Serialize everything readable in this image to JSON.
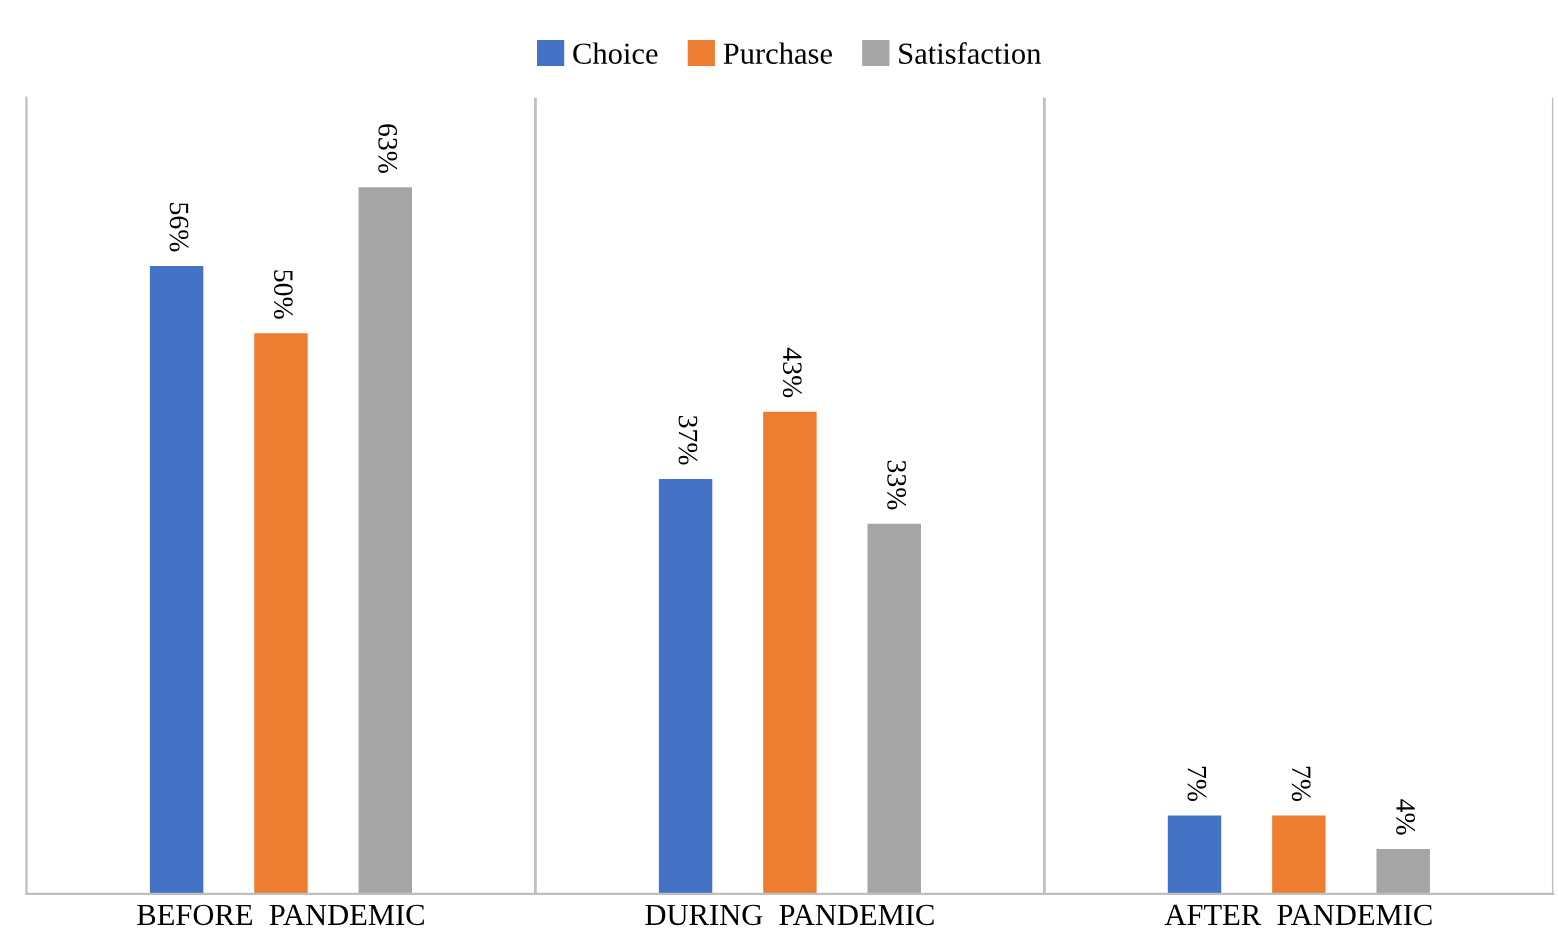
{
  "chart_data": {
    "type": "bar",
    "categories": [
      "BEFORE  PANDEMIC",
      "DURING  PANDEMIC",
      "AFTER  PANDEMIC"
    ],
    "series": [
      {
        "name": "Choice",
        "color": "#4472c4",
        "values": [
          56,
          37,
          7
        ],
        "value_labels": [
          "56%",
          "37%",
          "7%"
        ]
      },
      {
        "name": "Purchase",
        "color": "#ed7d31",
        "values": [
          50,
          43,
          7
        ],
        "value_labels": [
          "50%",
          "43%",
          "7%"
        ]
      },
      {
        "name": "Satisfaction",
        "color": "#a5a5a5",
        "values": [
          63,
          33,
          4
        ],
        "value_labels": [
          "63%",
          "33%",
          "4%"
        ]
      }
    ],
    "ylim": [
      0,
      71
    ],
    "tick_labels": "x",
    "legend": "top"
  }
}
